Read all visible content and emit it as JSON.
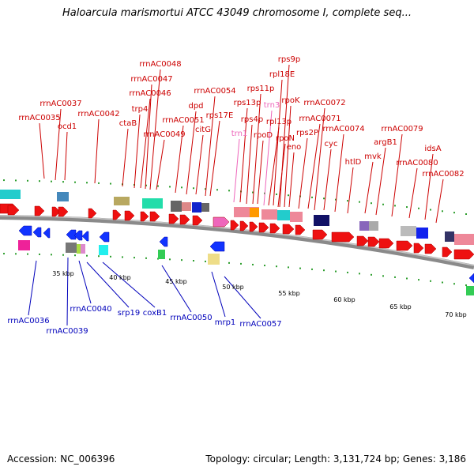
{
  "title": "Haloarcula marismortui ATCC 43049 chromosome I, complete seq...",
  "accession_text": "Accession: NC_006396",
  "summary_text": "Topology: circular; Length: 3,131,724 bp; Genes: 3,186",
  "kbp_ticks": [
    "35 kbp",
    "40 kbp",
    "45 kbp",
    "50 kbp",
    "55 kbp",
    "60 kbp",
    "65 kbp",
    "70 kbp"
  ],
  "forward_genes": [
    "rrnAC0035",
    "rrnAC0037",
    "ocd1",
    "rrnAC0042",
    "ctaB",
    "trp4",
    "rrnAC0046",
    "rrnAC0047",
    "rrnAC0048",
    "rrnAC0049",
    "rrnAC0051",
    "dpd",
    "citG",
    "rps17E",
    "rrnAC0054",
    "trn1",
    "rps13p",
    "rps4p",
    "rps11p",
    "rpoD",
    "trn3",
    "rpl13p",
    "rpl18E",
    "rpoN",
    "rps9p",
    "rpoK",
    "eno",
    "rps2P",
    "rrnAC0071",
    "rrnAC0072",
    "cyc",
    "rrnAC0074",
    "htlD",
    "mvk",
    "argB1",
    "rrnAC0079",
    "rrnAC0080",
    "idsA",
    "rrnAC0082"
  ],
  "reverse_genes": [
    "rrnAC0036",
    "rrnAC0039",
    "rrnAC0040",
    "srp19",
    "coxB1",
    "rrnAC0050",
    "mrp1",
    "rrnAC0057"
  ],
  "colors": {
    "forward": "#cc0000",
    "reverse": "#0000bb",
    "trna": "#ee66bb",
    "backbone": "#808080",
    "tick": "#2e9e2e"
  }
}
